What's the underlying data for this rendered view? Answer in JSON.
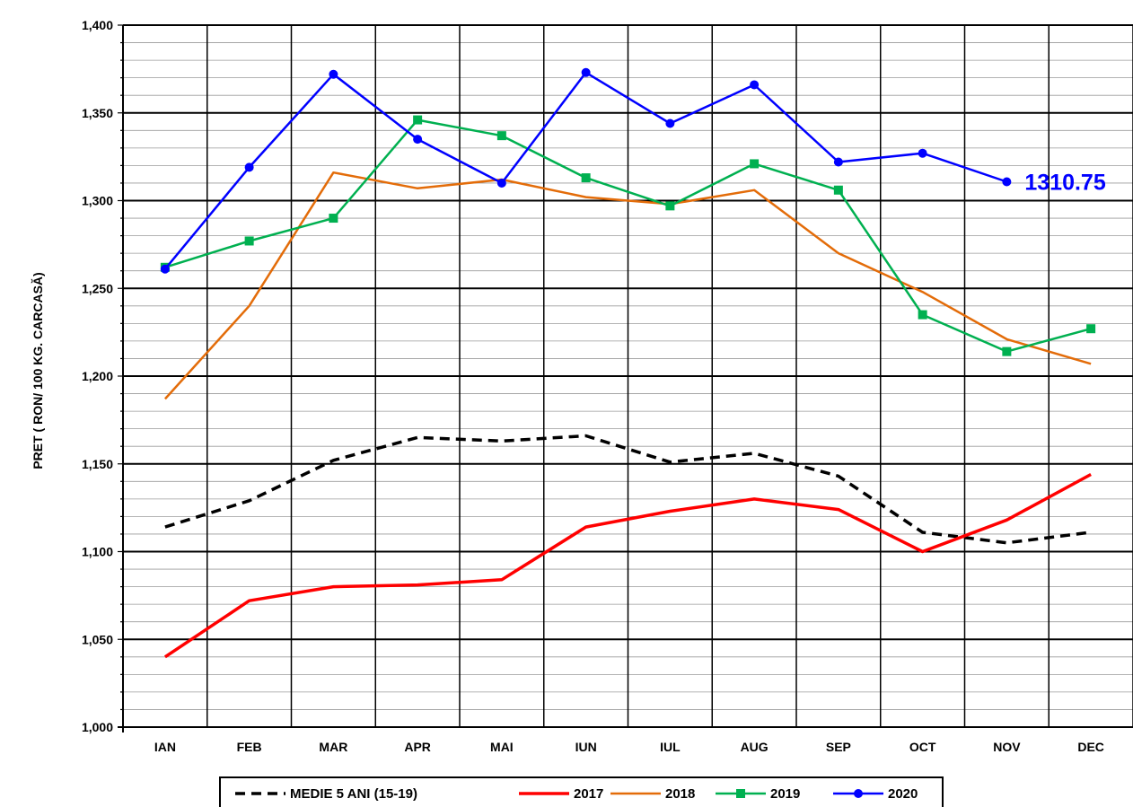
{
  "chart_data": {
    "type": "line",
    "title": "",
    "xlabel": "",
    "ylabel": "PRET ( RON/ 100 KG. CARCASĂ)",
    "categories": [
      "IAN",
      "FEB",
      "MAR",
      "APR",
      "MAI",
      "IUN",
      "IUL",
      "AUG",
      "SEP",
      "OCT",
      "NOV",
      "DEC"
    ],
    "ylim": [
      1000,
      1400
    ],
    "y_major_step": 50,
    "y_minor_step": 10,
    "y_tick_labels": [
      "1,000",
      "1,050",
      "1,100",
      "1,150",
      "1,200",
      "1,250",
      "1,300",
      "1,350",
      "1,400"
    ],
    "grid": true,
    "legend_position": "bottom",
    "series": [
      {
        "name": "MEDIE 5 ANI (15-19)",
        "color": "#000000",
        "dash": true,
        "marker": "none",
        "values": [
          1114,
          1129,
          1152,
          1165,
          1163,
          1166,
          1151,
          1156,
          1143,
          1111,
          1105,
          1111
        ]
      },
      {
        "name": "2017",
        "color": "#ff0000",
        "dash": false,
        "marker": "none",
        "values": [
          1040,
          1072,
          1080,
          1081,
          1084,
          1114,
          1123,
          1130,
          1124,
          1100,
          1118,
          1144
        ]
      },
      {
        "name": "2018",
        "color": "#e36c09",
        "dash": false,
        "marker": "none",
        "values": [
          1187,
          1240,
          1316,
          1307,
          1312,
          1302,
          1298,
          1306,
          1270,
          1248,
          1221,
          1207
        ]
      },
      {
        "name": "2019",
        "color": "#00b050",
        "dash": false,
        "marker": "square",
        "values": [
          1262,
          1277,
          1290,
          1346,
          1337,
          1313,
          1297,
          1321,
          1306,
          1235,
          1214,
          1227
        ]
      },
      {
        "name": "2020",
        "color": "#0000ff",
        "dash": false,
        "marker": "circle",
        "values": [
          1261,
          1319,
          1372,
          1335,
          1310,
          1373,
          1344,
          1366,
          1322,
          1327,
          1310.75,
          null
        ]
      }
    ],
    "annotation": {
      "text": "1310.75",
      "series": "2020",
      "category": "NOV",
      "color": "#0000ff"
    }
  }
}
